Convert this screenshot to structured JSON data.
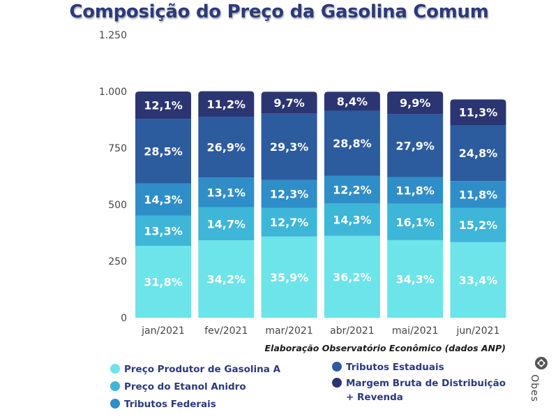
{
  "title": "Composição do Preço da Gasolina Comum",
  "source": "Elaboração Observatório Econômico (dados ANP)",
  "logo_text": "Obes",
  "colors": {
    "produtor": "#6de3ea",
    "etanol": "#3db6d8",
    "federais": "#2f8ec7",
    "estaduais": "#2c5b9e",
    "margem": "#2b3572",
    "axis_text": "#444444",
    "title": "#2b3a7a"
  },
  "legend": [
    {
      "key": "produtor",
      "label": "Preço Produtor de Gasolina A"
    },
    {
      "key": "etanol",
      "label": "Preço do Etanol Anidro"
    },
    {
      "key": "federais",
      "label": "Tributos Federais"
    },
    {
      "key": "estaduais",
      "label": "Tributos Estaduais"
    },
    {
      "key": "margem",
      "label": "Margem Bruta de Distribuição + Revenda"
    }
  ],
  "chart_data": {
    "type": "bar",
    "stacked": true,
    "categories": [
      "jan/2021",
      "fev/2021",
      "mar/2021",
      "abr/2021",
      "mai/2021",
      "jun/2021"
    ],
    "ylim": [
      0,
      1250
    ],
    "yticks": [
      0,
      250,
      500,
      750,
      1000,
      1250
    ],
    "ytick_labels": [
      "0",
      "250",
      "500",
      "750",
      "1.000",
      "1.250"
    ],
    "grid": false,
    "series": [
      {
        "name": "Preço Produtor de Gasolina A",
        "key": "produtor",
        "values": [
          318,
          342,
          359,
          362,
          343,
          334
        ],
        "labels": [
          "31,8%",
          "34,2%",
          "35,9%",
          "36,2%",
          "34,3%",
          "33,4%"
        ]
      },
      {
        "name": "Preço do Etanol Anidro",
        "key": "etanol",
        "values": [
          133,
          147,
          127,
          143,
          161,
          152
        ],
        "labels": [
          "13,3%",
          "14,7%",
          "12,7%",
          "14,3%",
          "16,1%",
          "15,2%"
        ]
      },
      {
        "name": "Tributos Federais",
        "key": "federais",
        "values": [
          143,
          131,
          123,
          122,
          118,
          118
        ],
        "labels": [
          "14,3%",
          "13,1%",
          "12,3%",
          "12,2%",
          "11,8%",
          "11,8%"
        ]
      },
      {
        "name": "Tributos Estaduais",
        "key": "estaduais",
        "values": [
          285,
          269,
          293,
          288,
          279,
          248
        ],
        "labels": [
          "28,5%",
          "26,9%",
          "29,3%",
          "28,8%",
          "27,9%",
          "24,8%"
        ]
      },
      {
        "name": "Margem Bruta de Distribuição + Revenda",
        "key": "margem",
        "values": [
          121,
          112,
          97,
          84,
          99,
          113
        ],
        "labels": [
          "12,1%",
          "11,2%",
          "9,7%",
          "8,4%",
          "9,9%",
          "11,3%"
        ]
      }
    ]
  }
}
